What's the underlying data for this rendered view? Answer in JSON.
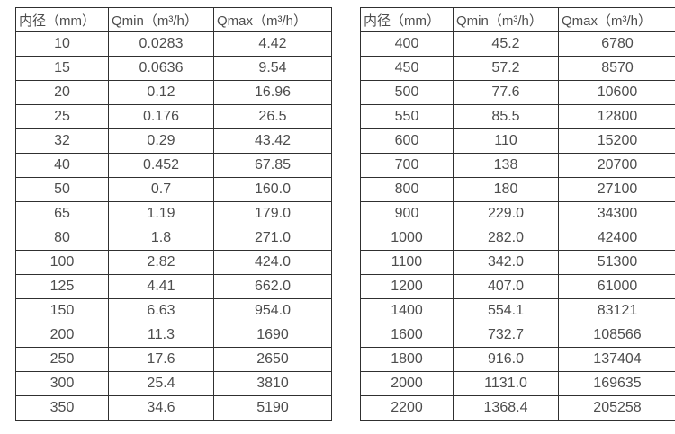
{
  "colors": {
    "background": "#ffffff",
    "border": "#303030",
    "text": "#4d4d4d"
  },
  "tables": [
    {
      "name": "flow-table-small-diameters",
      "headers": [
        "内径（mm）",
        "Qmin（m³/h）",
        "Qmax（m³/h）"
      ],
      "rows": [
        [
          "10",
          "0.0283",
          "4.42"
        ],
        [
          "15",
          "0.0636",
          "9.54"
        ],
        [
          "20",
          "0.12",
          "16.96"
        ],
        [
          "25",
          "0.176",
          "26.5"
        ],
        [
          "32",
          "0.29",
          "43.42"
        ],
        [
          "40",
          "0.452",
          "67.85"
        ],
        [
          "50",
          "0.7",
          "160.0"
        ],
        [
          "65",
          "1.19",
          "179.0"
        ],
        [
          "80",
          "1.8",
          "271.0"
        ],
        [
          "100",
          "2.82",
          "424.0"
        ],
        [
          "125",
          "4.41",
          "662.0"
        ],
        [
          "150",
          "6.63",
          "954.0"
        ],
        [
          "200",
          "11.3",
          "1690"
        ],
        [
          "250",
          "17.6",
          "2650"
        ],
        [
          "300",
          "25.4",
          "3810"
        ],
        [
          "350",
          "34.6",
          "5190"
        ]
      ]
    },
    {
      "name": "flow-table-large-diameters",
      "headers": [
        "内径（mm）",
        "Qmin（m³/h）",
        "Qmax（m³/h）"
      ],
      "rows": [
        [
          "400",
          "45.2",
          "6780"
        ],
        [
          "450",
          "57.2",
          "8570"
        ],
        [
          "500",
          "77.6",
          "10600"
        ],
        [
          "550",
          "85.5",
          "12800"
        ],
        [
          "600",
          "110",
          "15200"
        ],
        [
          "700",
          "138",
          "20700"
        ],
        [
          "800",
          "180",
          "27100"
        ],
        [
          "900",
          "229.0",
          "34300"
        ],
        [
          "1000",
          "282.0",
          "42400"
        ],
        [
          "1100",
          "342.0",
          "51300"
        ],
        [
          "1200",
          "407.0",
          "61000"
        ],
        [
          "1400",
          "554.1",
          "83121"
        ],
        [
          "1600",
          "732.7",
          "108566"
        ],
        [
          "1800",
          "916.0",
          "137404"
        ],
        [
          "2000",
          "1131.0",
          "169635"
        ],
        [
          "2200",
          "1368.4",
          "205258"
        ]
      ]
    }
  ]
}
